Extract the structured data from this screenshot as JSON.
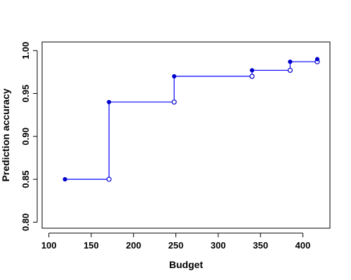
{
  "chart_data": {
    "type": "line",
    "style": "step",
    "xlabel": "Budget",
    "ylabel": "Prediction accuracy",
    "xlim": [
      92,
      432
    ],
    "ylim": [
      0.793,
      1.01
    ],
    "xticks": [
      100,
      150,
      200,
      250,
      300,
      350,
      400
    ],
    "yticks": [
      0.8,
      0.85,
      0.9,
      0.95,
      1.0
    ],
    "ytick_labels": [
      "0.80",
      "0.85",
      "0.90",
      "0.95",
      "1.00"
    ],
    "grid": false,
    "line_color": "#0000ff",
    "point_color": "#0000cd",
    "steps": [
      {
        "x_start": 119,
        "x_end": 171,
        "y": 0.85
      },
      {
        "x_start": 171,
        "x_end": 248,
        "y": 0.94
      },
      {
        "x_start": 248,
        "x_end": 340,
        "y": 0.97
      },
      {
        "x_start": 340,
        "x_end": 385,
        "y": 0.977
      },
      {
        "x_start": 385,
        "x_end": 417,
        "y": 0.987
      },
      {
        "x_start": 417,
        "x_end": 417,
        "y": 0.99
      }
    ]
  }
}
